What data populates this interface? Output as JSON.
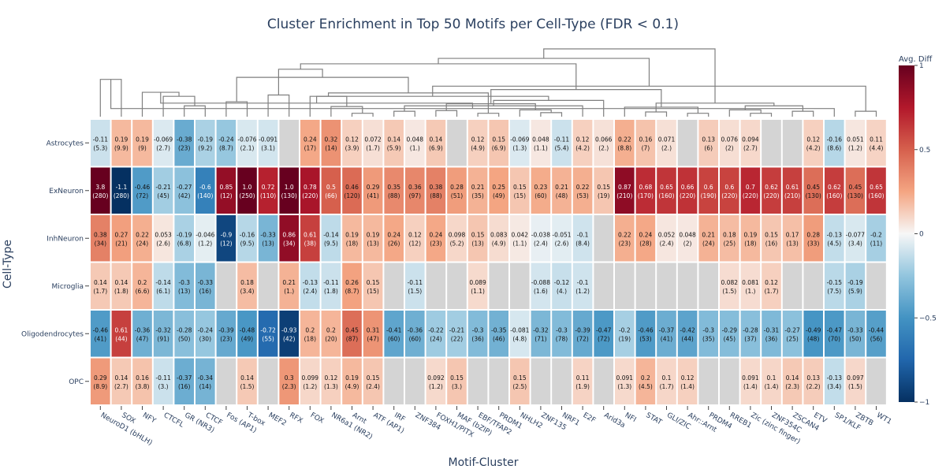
{
  "chart_data": {
    "type": "heatmap",
    "title": "Cluster Enrichment in Top 50 Motifs per Cell-Type (FDR < 0.1)",
    "xlabel": "Motif-Cluster",
    "ylabel": "Cell-Type",
    "colorbar_title": "Avg. Diff",
    "colorbar_ticks": [
      "1",
      "0.5",
      "0",
      "−0.5",
      "−1"
    ],
    "zlim": [
      -1,
      1
    ],
    "columns": [
      "NeuroD1 (bHLH)",
      "SOX",
      "NFY",
      "CTCFL",
      "GR (NR3)",
      "CTCF",
      "Fos (AP1)",
      "T-box",
      "MEF2",
      "RFX",
      "FOX",
      "NR6a1 (NR2)",
      "Arnt",
      "ATF (AP1)",
      "IRF",
      "ZNF384",
      "FOXH1/PITX",
      "MAF (bZIP)",
      "EBF/TFAP2",
      "PRDM1",
      "NHLH2",
      "ZNF135",
      "NRF1",
      "E2F",
      "Arid3a",
      "NFI",
      "STAT",
      "GLI/ZIC",
      "Ahr::Arnt",
      "PRDM4",
      "RREB1",
      "Zic (zinc finger)",
      "ZNF354C",
      "ZSCAN4",
      "ETV",
      "SP1/KLF",
      "ZBTB",
      "WT1"
    ],
    "rows": [
      "Astrocytes",
      "ExNeuron",
      "InhNeuron",
      "Microglia",
      "Oligodendrocytes",
      "OPC"
    ],
    "values": [
      [
        "-0.11",
        "0.19",
        "0.19",
        "-0.069",
        "-0.38",
        "-0.19",
        "-0.24",
        "-0.076",
        "-0.091",
        null,
        "0.24",
        "0.32",
        "0.12",
        "0.072",
        "0.14",
        "0.048",
        "0.14",
        null,
        "0.12",
        "0.15",
        "-0.069",
        "0.048",
        "-0.11",
        "0.12",
        "0.066",
        "0.22",
        "0.16",
        "0.071",
        null,
        "0.13",
        "0.076",
        "0.094",
        null,
        null,
        "0.12",
        "-0.16",
        "0.051",
        "0.11"
      ],
      [
        "3.8",
        "-1.1",
        "-0.46",
        "-0.21",
        "-0.27",
        "-0.6",
        "0.85",
        "1.0",
        "0.72",
        "1.0",
        "0.78",
        "0.5",
        "0.46",
        "0.29",
        "0.35",
        "0.36",
        "0.38",
        "0.28",
        "0.21",
        "0.25",
        "0.15",
        "0.23",
        "0.21",
        "0.22",
        "0.15",
        "0.87",
        "0.68",
        "0.65",
        "0.66",
        "0.6",
        "0.6",
        "0.7",
        "0.62",
        "0.61",
        "0.45",
        "0.62",
        "0.45",
        "0.65"
      ],
      [
        "0.38",
        "0.27",
        "0.22",
        "0.053",
        "-0.19",
        "-0.046",
        "-0.9",
        "-0.16",
        "-0.33",
        "0.86",
        "0.61",
        "-0.14",
        "0.19",
        "0.19",
        "0.24",
        "0.12",
        "0.24",
        "0.098",
        "0.15",
        "0.083",
        "0.042",
        "-0.038",
        "-0.051",
        "-0.1",
        null,
        "0.22",
        "0.24",
        "0.052",
        "0.048",
        "0.21",
        "0.18",
        "0.19",
        "0.15",
        "0.17",
        "0.28",
        "-0.13",
        "-0.077",
        "-0.2"
      ],
      [
        "0.14",
        "0.14",
        "0.2",
        "-0.14",
        "-0.3",
        "-0.33",
        null,
        "0.18",
        null,
        "0.21",
        "-0.13",
        "-0.11",
        "0.26",
        "0.15",
        null,
        "-0.11",
        null,
        null,
        "0.089",
        null,
        null,
        "-0.088",
        "-0.12",
        "-0.1",
        null,
        null,
        null,
        null,
        null,
        null,
        "0.082",
        "0.081",
        "0.12",
        null,
        null,
        "-0.15",
        "-0.19",
        null
      ],
      [
        "-0.46",
        "0.61",
        "-0.36",
        "-0.32",
        "-0.28",
        "-0.24",
        "-0.39",
        "-0.48",
        "-0.72",
        "-0.93",
        "0.2",
        "0.2",
        "0.45",
        "0.31",
        "-0.41",
        "-0.36",
        "-0.22",
        "-0.21",
        "-0.3",
        "-0.35",
        "-0.081",
        "-0.32",
        "-0.3",
        "-0.39",
        "-0.47",
        "-0.2",
        "-0.46",
        "-0.37",
        "-0.42",
        "-0.3",
        "-0.29",
        "-0.28",
        "-0.31",
        "-0.27",
        "-0.49",
        "-0.47",
        "-0.33",
        "-0.44"
      ],
      [
        "0.29",
        "0.14",
        "0.16",
        "-0.11",
        "-0.37",
        "-0.34",
        null,
        "0.14",
        null,
        "0.3",
        "0.099",
        "0.12",
        "0.19",
        "0.15",
        null,
        null,
        "0.092",
        "0.15",
        null,
        null,
        "0.15",
        null,
        null,
        "0.11",
        null,
        "0.091",
        "0.2",
        "0.1",
        "0.12",
        null,
        null,
        "0.091",
        "0.1",
        "0.14",
        "0.13",
        "-0.13",
        "0.097",
        null
      ]
    ],
    "counts": [
      [
        "(5.3)",
        "(9.9)",
        "(9)",
        "(2.7)",
        "(23)",
        "(9.2)",
        "(8.7)",
        "(2.1)",
        "(3.1)",
        null,
        "(17)",
        "(14)",
        "(3.9)",
        "(1.7)",
        "(5.9)",
        "(1.)",
        "(6.9)",
        null,
        "(4.9)",
        "(6.9)",
        "(1.3)",
        "(1.1)",
        "(5.4)",
        "(4.2)",
        "(2.)",
        "(8.8)",
        "(7)",
        "(2.)",
        null,
        "(6)",
        "(2)",
        "(2.7)",
        null,
        null,
        "(4.2)",
        "(8.6)",
        "(1.2)",
        "(4.4)"
      ],
      [
        "(280)",
        "(280)",
        "(72)",
        "(45)",
        "(42)",
        "(140)",
        "(12)",
        "(250)",
        "(110)",
        "(130)",
        "(220)",
        "(66)",
        "(120)",
        "(41)",
        "(88)",
        "(97)",
        "(88)",
        "(51)",
        "(35)",
        "(49)",
        "(15)",
        "(60)",
        "(48)",
        "(53)",
        "(19)",
        "(210)",
        "(170)",
        "(160)",
        "(220)",
        "(190)",
        "(220)",
        "(220)",
        "(220)",
        "(210)",
        "(130)",
        "(160)",
        "(130)",
        "(160)"
      ],
      [
        "(34)",
        "(21)",
        "(24)",
        "(2.6)",
        "(6.8)",
        "(1.2)",
        "(12)",
        "(9.5)",
        "(13)",
        "(34)",
        "(38)",
        "(9.5)",
        "(18)",
        "(13)",
        "(26)",
        "(12)",
        "(23)",
        "(5.2)",
        "(13)",
        "(4.9)",
        "(1.1)",
        "(2.4)",
        "(2.6)",
        "(8.4)",
        null,
        "(23)",
        "(28)",
        "(2.4)",
        "(2)",
        "(24)",
        "(25)",
        "(18)",
        "(16)",
        "(13)",
        "(33)",
        "(4.5)",
        "(3.4)",
        "(11)"
      ],
      [
        "(1.7)",
        "(1.8)",
        "(6.6)",
        "(6.1)",
        "(13)",
        "(16)",
        null,
        "(3.4)",
        null,
        "(1.)",
        "(2.4)",
        "(1.8)",
        "(8.7)",
        "(15)",
        null,
        "(1.5)",
        null,
        null,
        "(1.1)",
        null,
        null,
        "(1.6)",
        "(4.)",
        "(1.2)",
        null,
        null,
        null,
        null,
        null,
        null,
        "(1.5)",
        "(1.)",
        "(1.7)",
        null,
        null,
        "(7.5)",
        "(5.9)",
        null
      ],
      [
        "(41)",
        "(44)",
        "(47)",
        "(91)",
        "(50)",
        "(30)",
        "(23)",
        "(49)",
        "(55)",
        "(42)",
        "(18)",
        "(20)",
        "(87)",
        "(47)",
        "(60)",
        "(60)",
        "(24)",
        "(22)",
        "(36)",
        "(46)",
        "(4.8)",
        "(71)",
        "(78)",
        "(72)",
        "(72)",
        "(19)",
        "(53)",
        "(41)",
        "(44)",
        "(35)",
        "(45)",
        "(37)",
        "(36)",
        "(25)",
        "(48)",
        "(70)",
        "(50)",
        "(56)"
      ],
      [
        "(8.9)",
        "(2.7)",
        "(3.8)",
        "(3.)",
        "(16)",
        "(14)",
        null,
        "(1.5)",
        null,
        "(2.3)",
        "(1.2)",
        "(1.3)",
        "(4.9)",
        "(2.4)",
        null,
        null,
        "(1.2)",
        "(3.)",
        null,
        null,
        "(2.5)",
        null,
        null,
        "(1.9)",
        null,
        "(1.3)",
        "(4.5)",
        "(1.7)",
        "(1.4)",
        null,
        null,
        "(1.4)",
        "(1.4)",
        "(2.3)",
        "(2.2)",
        "(3.4)",
        "(1.5)",
        null
      ]
    ],
    "missing_color": "#d4d4d4",
    "colorscale": "RdBu_r"
  }
}
